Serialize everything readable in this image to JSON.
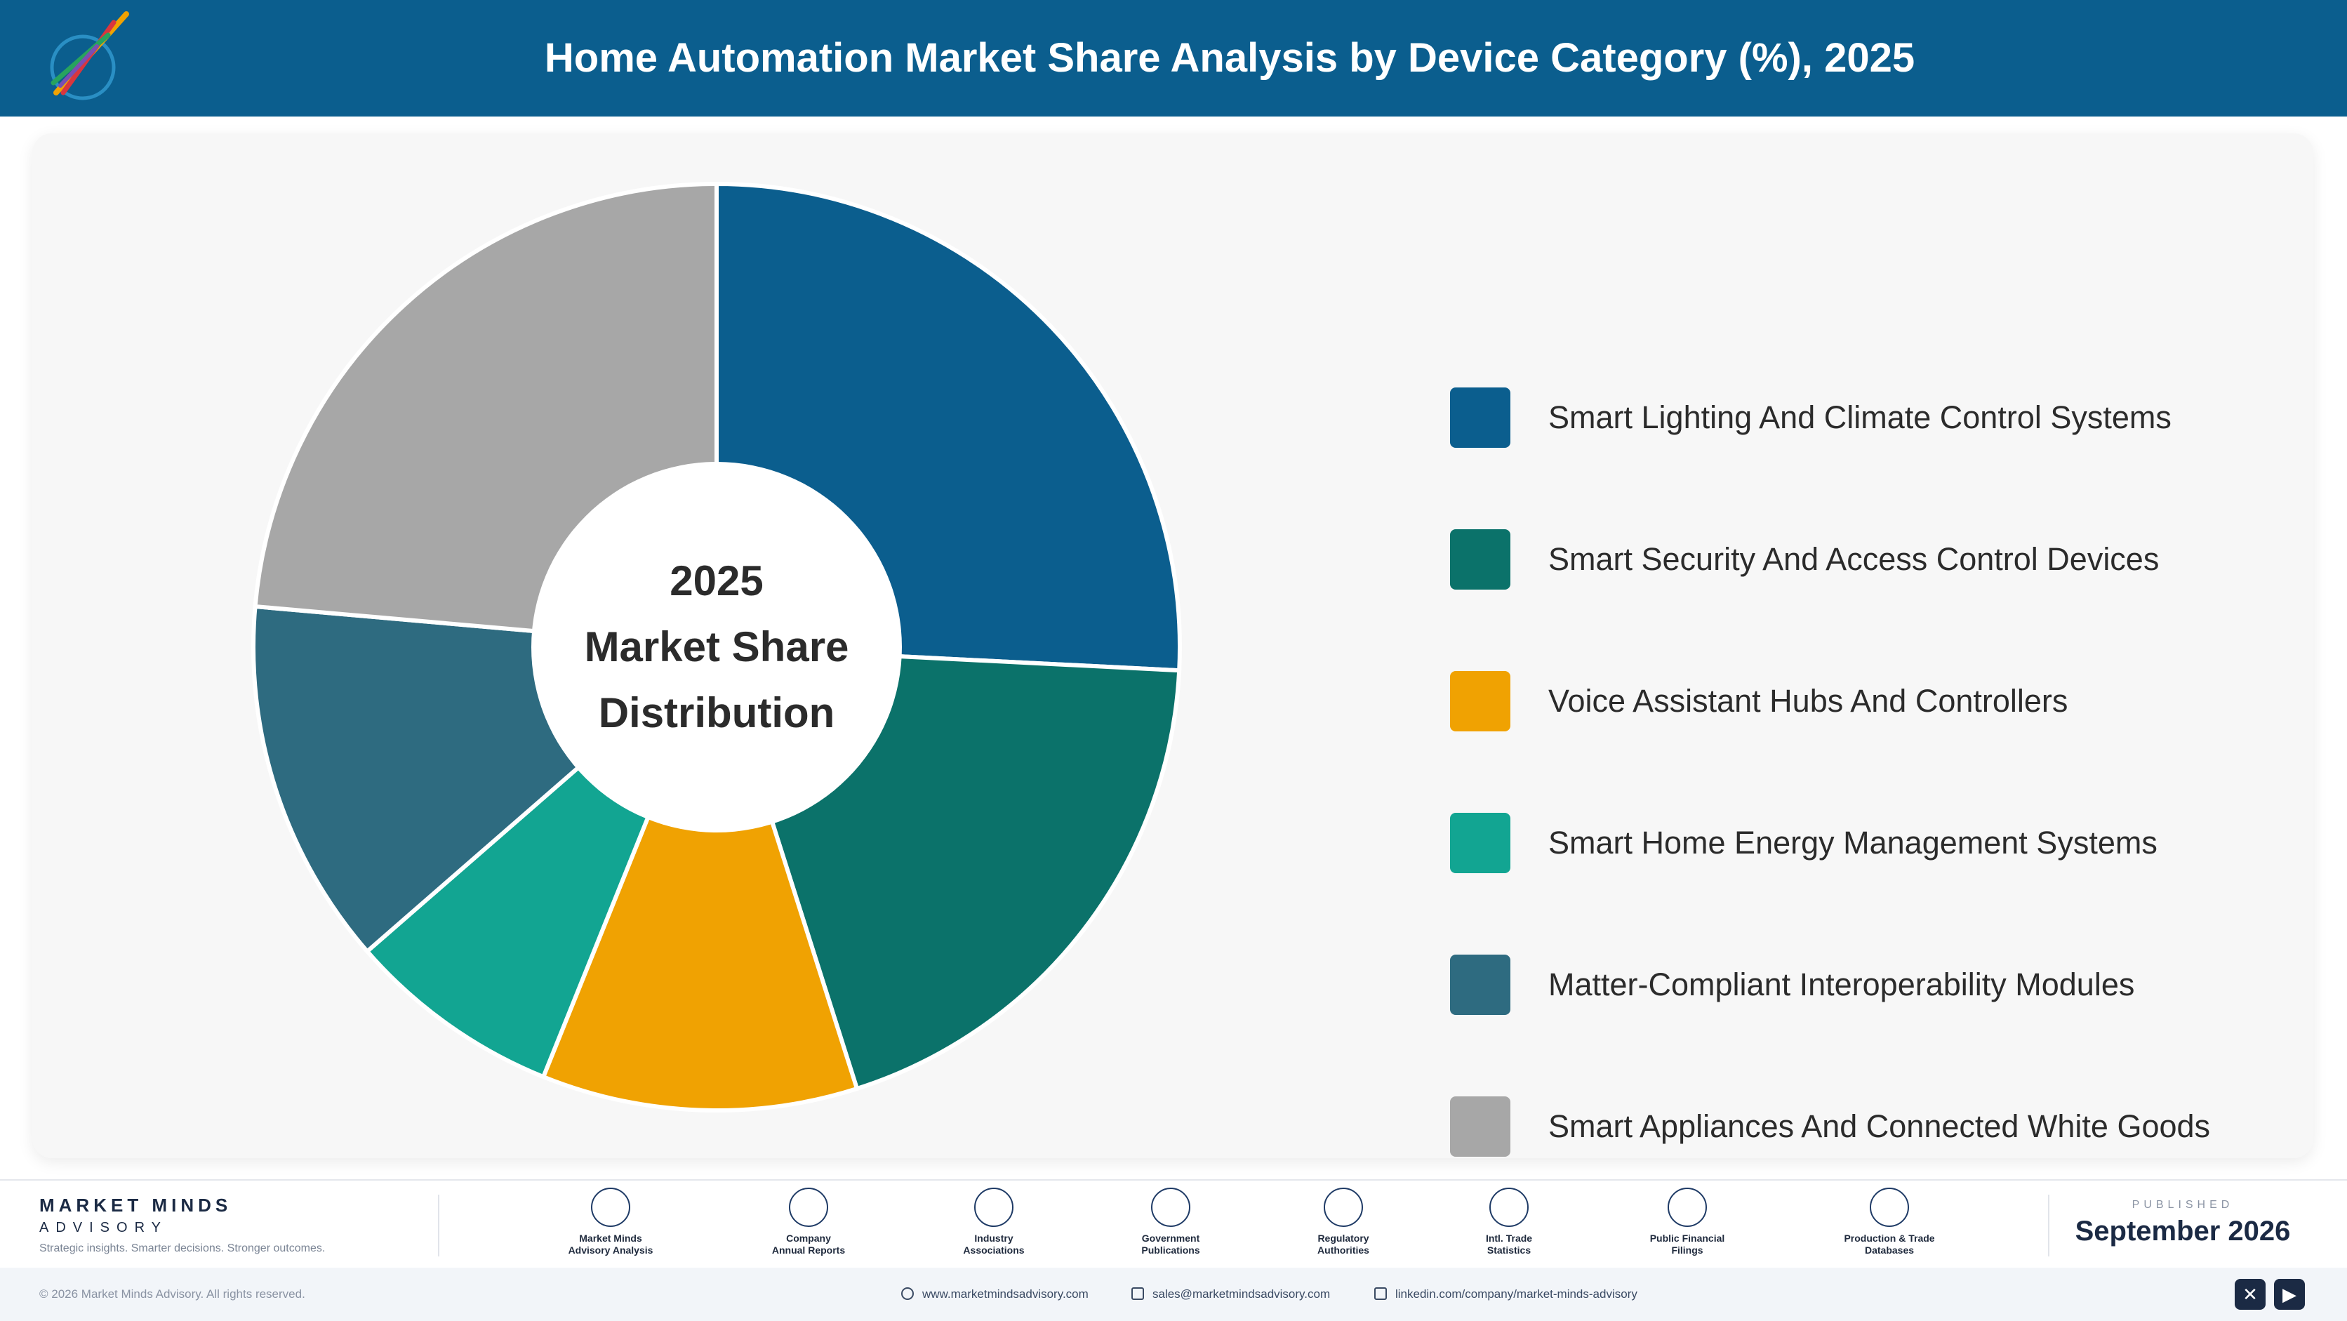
{
  "header": {
    "title": "Home Automation Market Share Analysis by Device Category (%), 2025"
  },
  "chart_data": {
    "type": "pie",
    "title": "Home Automation Market Share Analysis by Device Category (%), 2025",
    "center_label": [
      "2025",
      "Market Share",
      "Distribution"
    ],
    "legend_position": "right",
    "slices": [
      {
        "label": "Smart Lighting And Climate Control Systems",
        "value": 25.8,
        "color": "#0b5e8e"
      },
      {
        "label": "Smart Security And Access Control Devices",
        "value": 19.3,
        "color": "#0b726a"
      },
      {
        "label": "Voice Assistant Hubs And Controllers",
        "value": 11.0,
        "color": "#f0a202"
      },
      {
        "label": "Smart Home Energy Management Systems",
        "value": 7.5,
        "color": "#12a592"
      },
      {
        "label": "Matter-Compliant Interoperability Modules",
        "value": 12.8,
        "color": "#2e6b80"
      },
      {
        "label": "Smart Appliances And Connected White Goods",
        "value": 23.6,
        "color": "#a7a7a7"
      }
    ]
  },
  "footer": {
    "brand_name": "MARKET MINDS",
    "brand_sub": "ADVISORY",
    "tagline": "Strategic insights. Smarter decisions. Stronger outcomes.",
    "sources": [
      {
        "line1": "Market Minds",
        "line2": "Advisory Analysis",
        "icon": "chart-line-icon"
      },
      {
        "line1": "Company",
        "line2": "Annual Reports",
        "icon": "document-icon"
      },
      {
        "line1": "Industry",
        "line2": "Associations",
        "icon": "network-icon"
      },
      {
        "line1": "Government",
        "line2": "Publications",
        "icon": "government-icon"
      },
      {
        "line1": "Regulatory",
        "line2": "Authorities",
        "icon": "shield-check-icon"
      },
      {
        "line1": "Intl. Trade",
        "line2": "Statistics",
        "icon": "globe-icon"
      },
      {
        "line1": "Public Financial",
        "line2": "Filings",
        "icon": "dollar-icon"
      },
      {
        "line1": "Production & Trade",
        "line2": "Databases",
        "icon": "database-icon"
      }
    ],
    "published_label": "PUBLISHED",
    "published_date": "September 2026"
  },
  "bottom_bar": {
    "copyright": "© 2026 Market Minds Advisory. All rights reserved.",
    "website": "www.marketmindsadvisory.com",
    "email": "sales@marketmindsadvisory.com",
    "linkedin": "linkedin.com/company/market-minds-advisory"
  }
}
